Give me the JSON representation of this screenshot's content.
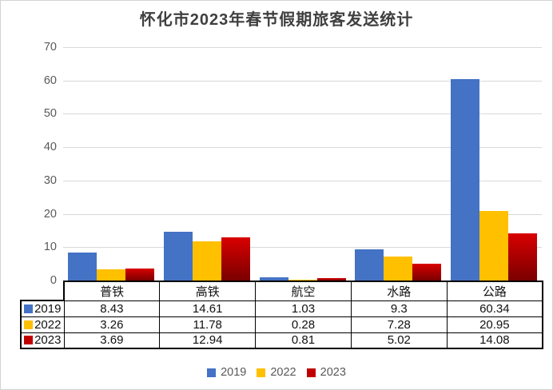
{
  "title": "怀化市2023年春节假期旅客发送统计",
  "chart_data": {
    "type": "bar",
    "title": "怀化市2023年春节假期旅客发送统计",
    "categories": [
      "普铁",
      "高铁",
      "航空",
      "水路",
      "公路"
    ],
    "series": [
      {
        "name": "2019",
        "color": "#4472C4",
        "values": [
          8.43,
          14.61,
          1.03,
          9.3,
          60.34
        ]
      },
      {
        "name": "2022",
        "color": "#FFC000",
        "values": [
          3.26,
          11.78,
          0.28,
          7.28,
          20.95
        ]
      },
      {
        "name": "2023",
        "color": "#C00000",
        "gradient": [
          "#D90000",
          "#7A0000"
        ],
        "values": [
          3.69,
          12.94,
          0.81,
          5.02,
          14.08
        ]
      }
    ],
    "xlabel": "",
    "ylabel": "",
    "ylim": [
      0,
      70
    ],
    "ytick_step": 10,
    "yticks": [
      0,
      10,
      20,
      30,
      40,
      50,
      60,
      70
    ],
    "grid": true,
    "legend_position": "bottom",
    "data_table_shown": true
  },
  "colors": {
    "grid_line": "#D9D9D9",
    "axis_text": "#595959",
    "title_text": "#3F3F3F",
    "table_border": "#000000",
    "frame_border": "#D3D3D3",
    "background": "#FFFFFF"
  }
}
